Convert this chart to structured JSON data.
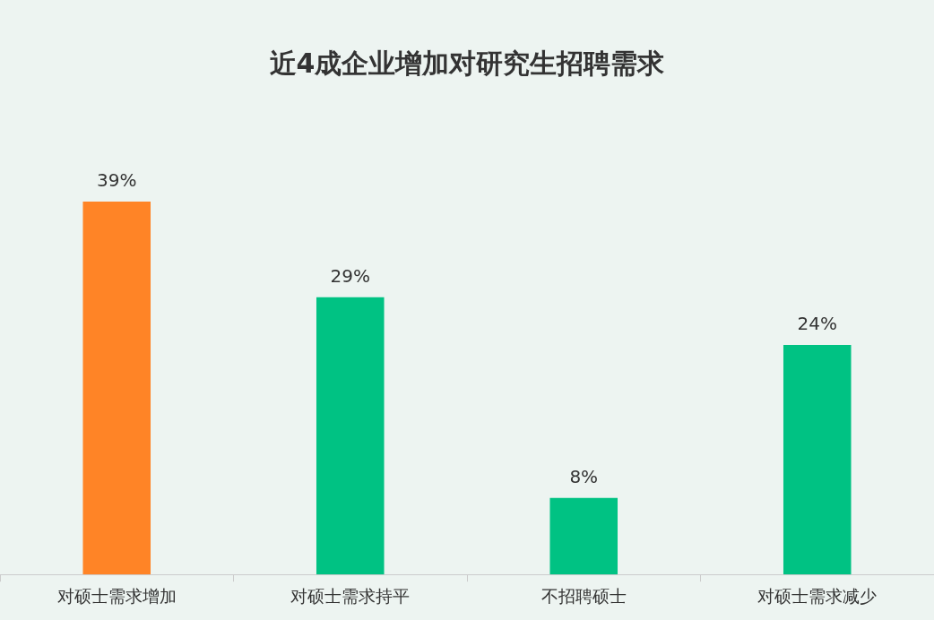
{
  "chart_data": {
    "type": "bar",
    "title": "近4成企业增加对研究生招聘需求",
    "categories": [
      "对硕士需求增加",
      "对硕士需求持平",
      "不招聘硕士",
      "对硕士需求减少"
    ],
    "values": [
      39,
      29,
      8,
      24
    ],
    "colors": [
      "#ff8426",
      "#00c283",
      "#00c283",
      "#00c283"
    ],
    "value_labels": [
      "39%",
      "29%",
      "8%",
      "24%"
    ],
    "grid": false,
    "legend": false
  }
}
